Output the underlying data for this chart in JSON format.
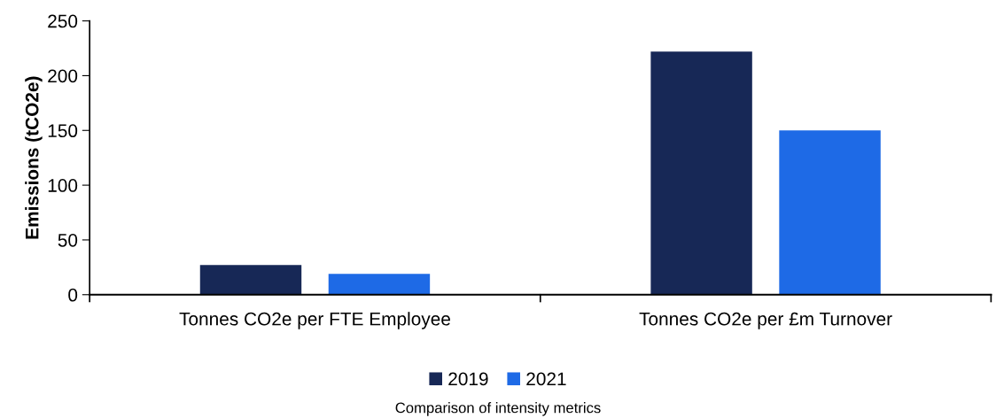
{
  "chart_data": {
    "type": "bar",
    "ylabel": "Emissions (tCO2e)",
    "categories": [
      "Tonnes CO2e per FTE Employee",
      "Tonnes CO2e per £m Turnover"
    ],
    "series": [
      {
        "name": "2019",
        "color": "#172856",
        "values": [
          27,
          222
        ]
      },
      {
        "name": "2021",
        "color": "#1e6ae6",
        "values": [
          19,
          150
        ]
      }
    ],
    "ylim": [
      0,
      250
    ],
    "yticks": [
      0,
      50,
      100,
      150,
      200,
      250
    ],
    "grid": false,
    "legend": "bottom",
    "annotations": [
      "Comparison of intensity metrics"
    ]
  }
}
